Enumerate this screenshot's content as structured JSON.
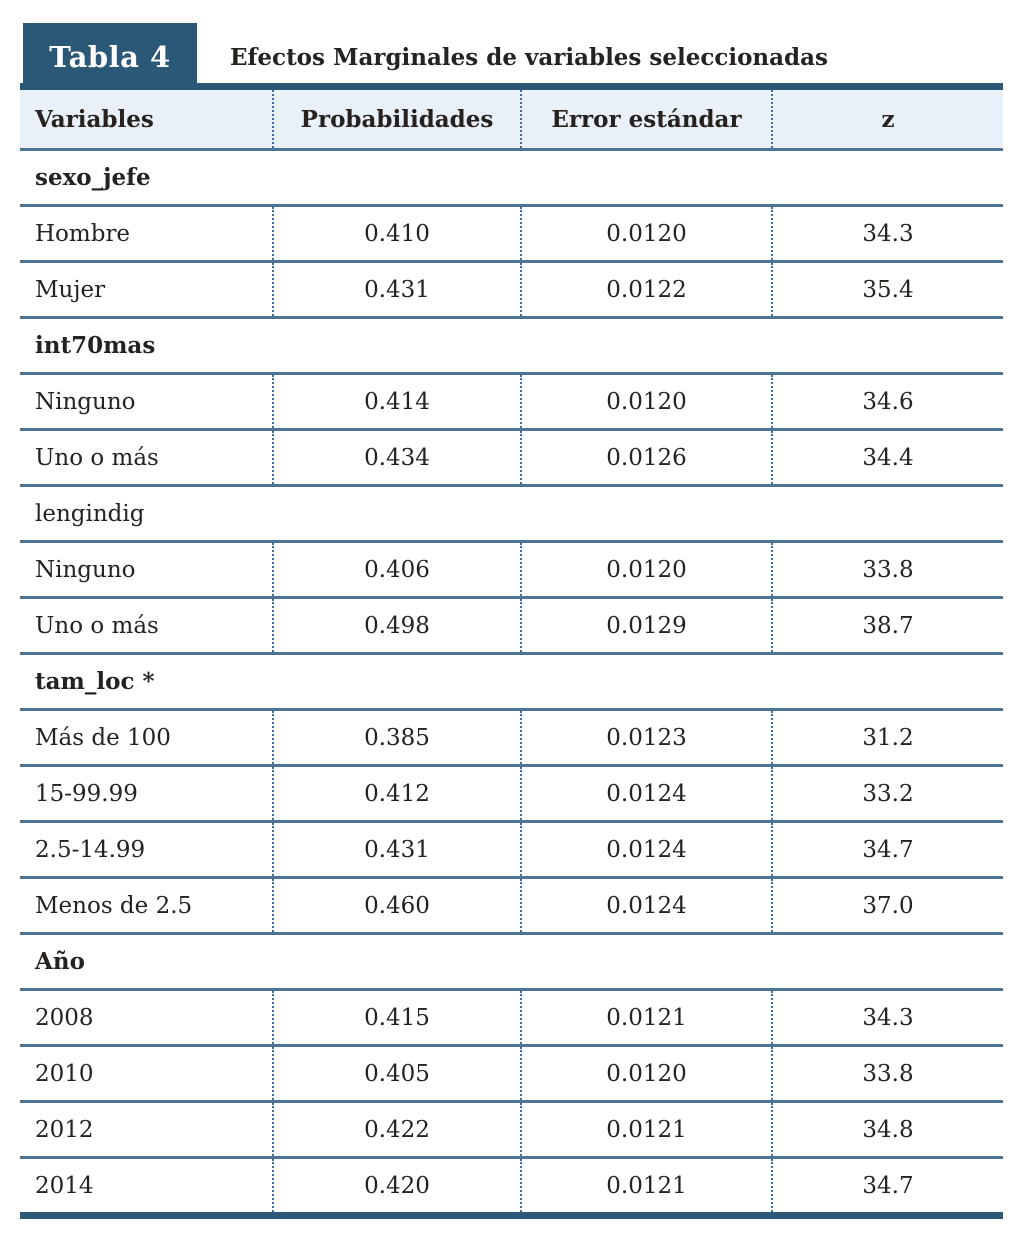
{
  "badge_label": "Tabla 4",
  "title": "Efectos Marginales de variables seleccionadas",
  "colors": {
    "accent_dark": "#2b5877",
    "header_background": "#e9f0f7",
    "row_line": "#4d7396",
    "dotted_separator": "#3f6fa5",
    "text": "#26221f"
  },
  "table": {
    "columns": [
      {
        "label": "Variables"
      },
      {
        "label": "Probabilidades"
      },
      {
        "label": "Error estándar"
      },
      {
        "label": "z"
      }
    ],
    "sections": [
      {
        "label": "sexo_jefe",
        "bold": true,
        "rows": [
          [
            "Hombre",
            "0.410",
            "0.0120",
            "34.3"
          ],
          [
            "Mujer",
            "0.431",
            "0.0122",
            "35.4"
          ]
        ]
      },
      {
        "label": "int70mas",
        "bold": true,
        "rows": [
          [
            "Ninguno",
            "0.414",
            "0.0120",
            "34.6"
          ],
          [
            "Uno o más",
            "0.434",
            "0.0126",
            "34.4"
          ]
        ]
      },
      {
        "label": "lengindig",
        "bold": false,
        "rows": [
          [
            "Ninguno",
            "0.406",
            "0.0120",
            "33.8"
          ],
          [
            "Uno o más",
            "0.498",
            "0.0129",
            "38.7"
          ]
        ]
      },
      {
        "label": "tam_loc *",
        "bold": true,
        "rows": [
          [
            "Más de 100",
            "0.385",
            "0.0123",
            "31.2"
          ],
          [
            "15-99.99",
            "0.412",
            "0.0124",
            "33.2"
          ],
          [
            "2.5-14.99",
            "0.431",
            "0.0124",
            "34.7"
          ],
          [
            "Menos de 2.5",
            "0.460",
            "0.0124",
            "37.0"
          ]
        ]
      },
      {
        "label": "Año",
        "bold": true,
        "rows": [
          [
            "2008",
            "0.415",
            "0.0121",
            "34.3"
          ],
          [
            "2010",
            "0.405",
            "0.0120",
            "33.8"
          ],
          [
            "2012",
            "0.422",
            "0.0121",
            "34.8"
          ],
          [
            "2014",
            "0.420",
            "0.0121",
            "34.7"
          ]
        ]
      }
    ]
  },
  "chart_data": {
    "type": "table",
    "title": "Efectos Marginales de variables seleccionadas",
    "columns": [
      "Variables",
      "Probabilidades",
      "Error estándar",
      "z"
    ],
    "groups": {
      "sexo_jefe": {
        "Hombre": [
          0.41,
          0.012,
          34.3
        ],
        "Mujer": [
          0.431,
          0.0122,
          35.4
        ]
      },
      "int70mas": {
        "Ninguno": [
          0.414,
          0.012,
          34.6
        ],
        "Uno o más": [
          0.434,
          0.0126,
          34.4
        ]
      },
      "lengindig": {
        "Ninguno": [
          0.406,
          0.012,
          33.8
        ],
        "Uno o más": [
          0.498,
          0.0129,
          38.7
        ]
      },
      "tam_loc *": {
        "Más de 100": [
          0.385,
          0.0123,
          31.2
        ],
        "15-99.99": [
          0.412,
          0.0124,
          33.2
        ],
        "2.5-14.99": [
          0.431,
          0.0124,
          34.7
        ],
        "Menos de 2.5": [
          0.46,
          0.0124,
          37.0
        ]
      },
      "Año": {
        "2008": [
          0.415,
          0.0121,
          34.3
        ],
        "2010": [
          0.405,
          0.012,
          33.8
        ],
        "2012": [
          0.422,
          0.0121,
          34.8
        ],
        "2014": [
          0.42,
          0.0121,
          34.7
        ]
      }
    }
  }
}
